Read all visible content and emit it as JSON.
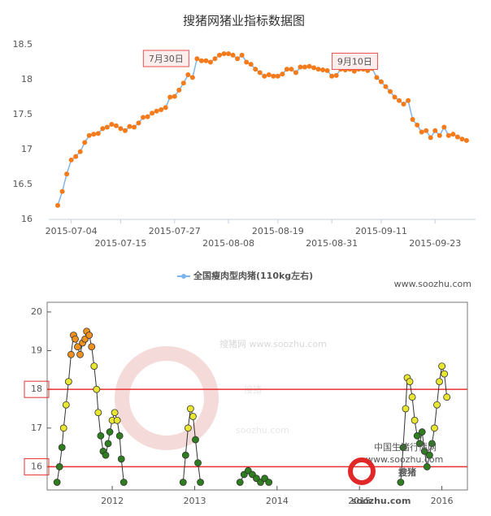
{
  "chart_data": [
    {
      "type": "line",
      "title": "搜猪网猪业指标数据图",
      "watermark": "www.soozhu.com",
      "x": [
        "2015-07-01",
        "2015-07-02",
        "2015-07-03",
        "2015-07-04",
        "2015-07-05",
        "2015-07-06",
        "2015-07-07",
        "2015-07-08",
        "2015-07-09",
        "2015-07-10",
        "2015-07-11",
        "2015-07-12",
        "2015-07-13",
        "2015-07-14",
        "2015-07-15",
        "2015-07-16",
        "2015-07-17",
        "2015-07-18",
        "2015-07-19",
        "2015-07-20",
        "2015-07-21",
        "2015-07-22",
        "2015-07-23",
        "2015-07-24",
        "2015-07-25",
        "2015-07-26",
        "2015-07-27",
        "2015-07-28",
        "2015-07-29",
        "2015-07-30",
        "2015-07-31",
        "2015-08-01",
        "2015-08-02",
        "2015-08-03",
        "2015-08-04",
        "2015-08-05",
        "2015-08-06",
        "2015-08-07",
        "2015-08-08",
        "2015-08-09",
        "2015-08-10",
        "2015-08-11",
        "2015-08-12",
        "2015-08-13",
        "2015-08-14",
        "2015-08-15",
        "2015-08-16",
        "2015-08-17",
        "2015-08-18",
        "2015-08-19",
        "2015-08-20",
        "2015-08-21",
        "2015-08-22",
        "2015-08-23",
        "2015-08-24",
        "2015-08-25",
        "2015-08-26",
        "2015-08-27",
        "2015-08-28",
        "2015-08-29",
        "2015-08-30",
        "2015-08-31",
        "2015-09-01",
        "2015-09-02",
        "2015-09-03",
        "2015-09-04",
        "2015-09-05",
        "2015-09-06",
        "2015-09-07",
        "2015-09-08",
        "2015-09-09",
        "2015-09-10",
        "2015-09-11",
        "2015-09-12",
        "2015-09-13",
        "2015-09-14",
        "2015-09-15",
        "2015-09-16",
        "2015-09-17",
        "2015-09-18",
        "2015-09-19",
        "2015-09-20",
        "2015-09-21",
        "2015-09-22",
        "2015-09-23",
        "2015-09-24",
        "2015-09-25",
        "2015-09-26",
        "2015-09-27",
        "2015-09-28",
        "2015-09-29",
        "2015-09-30"
      ],
      "series": [
        {
          "name": "全国瘦肉型肉猪(110kg左右)",
          "color": "#7cb5ec",
          "marker_color": "#f57a1a",
          "values": [
            16.2,
            16.4,
            16.65,
            16.85,
            16.9,
            16.97,
            17.1,
            17.2,
            17.22,
            17.23,
            17.3,
            17.32,
            17.36,
            17.34,
            17.3,
            17.27,
            17.33,
            17.32,
            17.38,
            17.46,
            17.47,
            17.52,
            17.55,
            17.57,
            17.6,
            17.75,
            17.76,
            17.85,
            17.95,
            18.07,
            18.03,
            18.3,
            18.27,
            18.27,
            18.25,
            18.3,
            18.35,
            18.37,
            18.37,
            18.35,
            18.3,
            18.35,
            18.25,
            18.22,
            18.15,
            18.1,
            18.05,
            18.07,
            18.05,
            18.05,
            18.08,
            18.15,
            18.15,
            18.1,
            18.18,
            18.18,
            18.19,
            18.17,
            18.15,
            18.14,
            18.13,
            18.05,
            18.06,
            18.15,
            18.14,
            18.15,
            18.12,
            18.15,
            18.15,
            18.13,
            18.16,
            18.03,
            17.97,
            17.9,
            17.83,
            17.75,
            17.7,
            17.65,
            17.7,
            17.43,
            17.35,
            17.25,
            17.27,
            17.17,
            17.27,
            17.2,
            17.32,
            17.2,
            17.22,
            17.18,
            17.15,
            17.13
          ]
        }
      ],
      "annotations": [
        {
          "text": "7月30日",
          "x": "2015-07-30"
        },
        {
          "text": "9月10日",
          "x": "2015-09-10"
        }
      ],
      "xlim": [
        "2015-06-29",
        "2015-10-02"
      ],
      "xticks": [
        "2015-07-04",
        "2015-07-15",
        "2015-07-27",
        "2015-08-08",
        "2015-08-19",
        "2015-08-31",
        "2015-09-11",
        "2015-09-23"
      ],
      "ylim": [
        16,
        18.5
      ],
      "yticks": [
        16,
        16.5,
        17,
        17.5,
        18,
        18.5
      ],
      "grid": false
    },
    {
      "type": "scatter",
      "connect": true,
      "line_color": "#333333",
      "watermarks": [
        "搜猪网  www.soozhu.com",
        "搜猪",
        "soozhu.com",
        "中国生猪行情网",
        "www.soozhu.com"
      ],
      "logo": {
        "name": "搜猪",
        "url": "soozhu.com"
      },
      "x": [
        2011.33,
        2011.36,
        2011.39,
        2011.41,
        2011.44,
        2011.47,
        2011.5,
        2011.53,
        2011.55,
        2011.58,
        2011.61,
        2011.64,
        2011.67,
        2011.69,
        2011.72,
        2011.75,
        2011.78,
        2011.81,
        2011.83,
        2011.86,
        2011.89,
        2011.92,
        2011.95,
        2011.97,
        2012.0,
        2012.03,
        2012.06,
        2012.09,
        2012.11,
        2012.14,
        2012.5,
        2012.86,
        2012.89,
        2012.92,
        2012.95,
        2012.98,
        2013.01,
        2013.04,
        2013.07,
        2013.3,
        2013.55,
        2013.6,
        2013.65,
        2013.7,
        2013.75,
        2013.8,
        2013.85,
        2013.9,
        2014.7,
        2015.5,
        2015.53,
        2015.56,
        2015.58,
        2015.61,
        2015.64,
        2015.67,
        2015.7,
        2015.73,
        2015.76,
        2015.79,
        2015.82,
        2015.85,
        2015.88,
        2015.91,
        2015.94,
        2015.97,
        2016.0,
        2016.03,
        2016.06
      ],
      "series": [
        {
          "values": [
            15.6,
            16.0,
            16.5,
            17.0,
            17.6,
            18.2,
            18.9,
            19.4,
            19.3,
            19.1,
            18.9,
            19.2,
            19.3,
            19.5,
            19.4,
            19.1,
            18.6,
            18.0,
            17.4,
            16.8,
            16.4,
            16.3,
            16.6,
            16.9,
            17.2,
            17.4,
            17.2,
            16.8,
            16.2,
            15.6,
            null,
            15.6,
            16.3,
            17.0,
            17.5,
            17.3,
            16.7,
            16.1,
            15.6,
            null,
            15.6,
            15.8,
            15.9,
            15.8,
            15.7,
            15.6,
            15.7,
            15.6,
            null,
            15.6,
            16.5,
            17.5,
            18.3,
            18.2,
            17.8,
            17.2,
            16.8,
            16.6,
            16.9,
            16.4,
            16.0,
            16.3,
            16.6,
            17.0,
            17.6,
            18.2,
            18.6,
            18.4,
            17.8
          ]
        }
      ],
      "color_scale": [
        {
          "below": 17,
          "color": "#2e7d1f"
        },
        {
          "below": 18.8,
          "color": "#e8e630"
        },
        {
          "color": "#f0901e"
        }
      ],
      "reference_lines": [
        18,
        16
      ],
      "reference_color": "#e83030",
      "xlim": [
        2011.21,
        2016.31
      ],
      "xticks": [
        2012,
        2013,
        2014,
        2015,
        2016
      ],
      "ylim": [
        15.4,
        20.25
      ],
      "yticks": [
        16,
        17,
        18,
        19,
        20
      ]
    }
  ]
}
